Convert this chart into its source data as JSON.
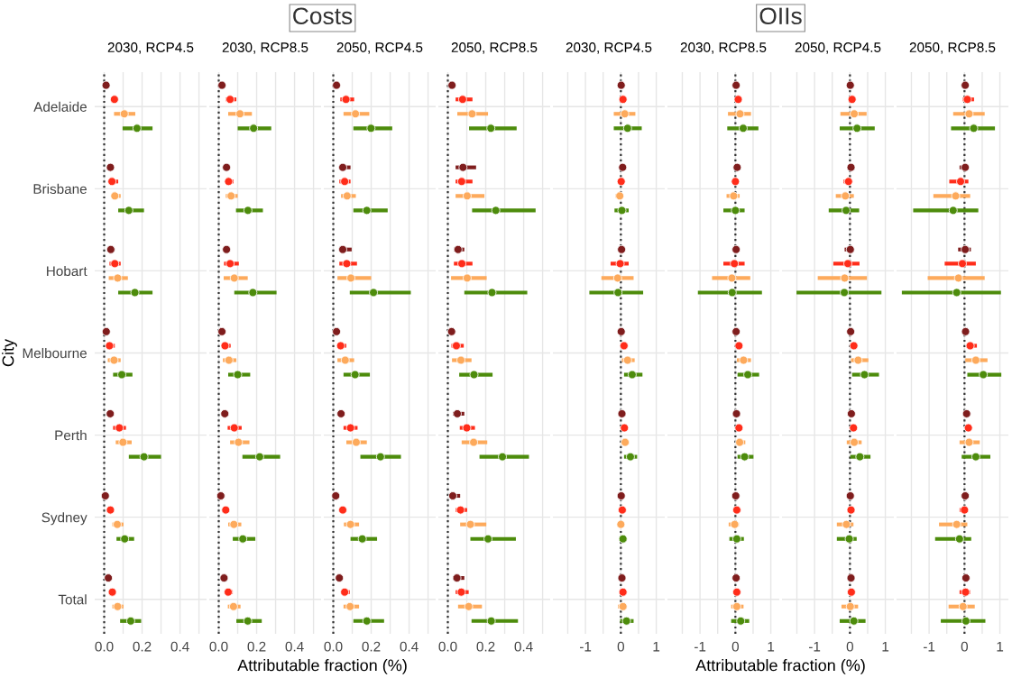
{
  "chart_data": [
    {
      "type": "scatter",
      "orientation": "horizontal",
      "title": "2030, RCP4.5",
      "xlabel": "Attributable fraction (%)",
      "ylabel": "City",
      "annotations": [
        "Costs"
      ],
      "grid": true,
      "marker": "circle",
      "categories": [
        "Adelaide",
        "Brisbane",
        "Hobart",
        "Melbourne",
        "Perth",
        "Sydney",
        "Total"
      ],
      "xlim": [
        -0.05,
        0.54
      ],
      "xticks": [
        {
          "value": 0,
          "label": "0.0"
        },
        {
          "value": 0.1,
          "label": null
        },
        {
          "value": 0.2,
          "label": "0.2"
        },
        {
          "value": 0.3,
          "label": null
        },
        {
          "value": 0.4,
          "label": "0.4"
        },
        {
          "value": 0.5,
          "label": null
        }
      ],
      "ref_lines": [
        {
          "axis": "x",
          "value": 0,
          "line_style": "dotted",
          "color": "#333333"
        }
      ],
      "series": [
        {
          "color": "#7f1d1d",
          "values": [
            0.01,
            0.033,
            0.035,
            0.011,
            0.032,
            0.006,
            0.022
          ],
          "errors": [
            null,
            null,
            null,
            null,
            null,
            null,
            null
          ]
        },
        {
          "color": "#ff2d1a",
          "values": [
            0.054,
            0.041,
            0.056,
            0.028,
            0.08,
            0.033,
            0.043
          ],
          "errors": [
            [
              0.041,
              0.071
            ],
            [
              0.028,
              0.074
            ],
            [
              0.028,
              0.087
            ],
            [
              0.015,
              0.056
            ],
            [
              0.047,
              0.115
            ],
            null,
            null
          ]
        },
        {
          "color": "#fdaa5c",
          "values": [
            0.106,
            0.056,
            0.071,
            0.052,
            0.099,
            0.069,
            0.071
          ],
          "errors": [
            [
              0.052,
              0.164
            ],
            [
              0.041,
              0.087
            ],
            [
              0.024,
              0.125
            ],
            [
              0.019,
              0.087
            ],
            [
              0.061,
              0.145
            ],
            [
              0.043,
              0.102
            ],
            [
              0.043,
              0.102
            ]
          ]
        },
        {
          "color": "#4d8c0c",
          "values": [
            0.173,
            0.13,
            0.162,
            0.093,
            0.21,
            0.108,
            0.14
          ],
          "errors": [
            [
              0.097,
              0.255
            ],
            [
              0.074,
              0.21
            ],
            [
              0.074,
              0.255
            ],
            [
              0.047,
              0.149
            ],
            [
              0.13,
              0.3
            ],
            [
              0.065,
              0.158
            ],
            [
              0.084,
              0.195
            ]
          ]
        }
      ]
    },
    {
      "type": "scatter",
      "orientation": "horizontal",
      "title": "2030, RCP8.5",
      "tick_labels": "x",
      "grid": true,
      "marker": "circle",
      "xlim": [
        -0.05,
        0.54
      ],
      "xticks": [
        {
          "value": 0,
          "label": "0.0"
        },
        {
          "value": 0.1,
          "label": null
        },
        {
          "value": 0.2,
          "label": "0.2"
        },
        {
          "value": 0.3,
          "label": null
        },
        {
          "value": 0.4,
          "label": "0.4"
        },
        {
          "value": 0.5,
          "label": null
        }
      ],
      "ref_lines": [
        {
          "axis": "x",
          "value": 0,
          "line_style": "dotted",
          "color": "#333333"
        }
      ],
      "series": [
        {
          "color": "#7f1d1d",
          "values": [
            0.017,
            0.041,
            0.041,
            0.017,
            0.032,
            0.011,
            0.028
          ],
          "errors": [
            null,
            null,
            null,
            null,
            null,
            null,
            null
          ]
        },
        {
          "color": "#ff2d1a",
          "values": [
            0.06,
            0.052,
            0.06,
            0.033,
            0.082,
            0.037,
            0.05
          ],
          "errors": [
            [
              0.037,
              0.093
            ],
            [
              0.037,
              0.078
            ],
            [
              0.028,
              0.106
            ],
            [
              0.022,
              0.063
            ],
            [
              0.047,
              0.121
            ],
            null,
            [
              0.035,
              0.074
            ]
          ]
        },
        {
          "color": "#fdaa5c",
          "values": [
            0.112,
            0.065,
            0.082,
            0.054,
            0.104,
            0.08,
            0.078
          ],
          "errors": [
            [
              0.05,
              0.175
            ],
            [
              0.037,
              0.1
            ],
            [
              0.026,
              0.153
            ],
            [
              0.022,
              0.093
            ],
            [
              0.06,
              0.162
            ],
            [
              0.05,
              0.119
            ],
            [
              0.048,
              0.115
            ]
          ]
        },
        {
          "color": "#4d8c0c",
          "values": [
            0.184,
            0.154,
            0.18,
            0.1,
            0.216,
            0.127,
            0.153
          ],
          "errors": [
            [
              0.1,
              0.277
            ],
            [
              0.091,
              0.233
            ],
            [
              0.082,
              0.305
            ],
            [
              0.05,
              0.166
            ],
            [
              0.125,
              0.324
            ],
            [
              0.074,
              0.193
            ],
            [
              0.093,
              0.227
            ]
          ]
        }
      ]
    },
    {
      "type": "scatter",
      "orientation": "horizontal",
      "title": "2050, RCP4.5",
      "tick_labels": "x",
      "grid": true,
      "marker": "circle",
      "xlim": [
        -0.05,
        0.54
      ],
      "xticks": [
        {
          "value": 0,
          "label": "0.0"
        },
        {
          "value": 0.1,
          "label": null
        },
        {
          "value": 0.2,
          "label": "0.2"
        },
        {
          "value": 0.3,
          "label": null
        },
        {
          "value": 0.4,
          "label": "0.4"
        },
        {
          "value": 0.5,
          "label": null
        }
      ],
      "ref_lines": [
        {
          "axis": "x",
          "value": 0,
          "line_style": "dotted",
          "color": "#333333"
        }
      ],
      "series": [
        {
          "color": "#7f1d1d",
          "values": [
            0.017,
            0.05,
            0.05,
            0.017,
            0.041,
            0.013,
            0.032
          ],
          "errors": [
            null,
            [
              0.035,
              0.091
            ],
            [
              0.032,
              0.097
            ],
            null,
            null,
            null,
            null
          ]
        },
        {
          "color": "#ff2d1a",
          "values": [
            0.067,
            0.06,
            0.071,
            0.039,
            0.091,
            0.05,
            0.06
          ],
          "errors": [
            [
              0.037,
              0.11
            ],
            [
              0.032,
              0.091
            ],
            [
              0.032,
              0.125
            ],
            [
              0.026,
              0.069
            ],
            [
              0.054,
              0.128
            ],
            [
              0.037,
              0.069
            ],
            [
              0.041,
              0.087
            ]
          ]
        },
        {
          "color": "#fdaa5c",
          "values": [
            0.117,
            0.073,
            0.093,
            0.063,
            0.121,
            0.091,
            0.089
          ],
          "errors": [
            [
              0.054,
              0.19
            ],
            [
              0.041,
              0.119
            ],
            [
              0.022,
              0.2
            ],
            [
              0.022,
              0.11
            ],
            [
              0.069,
              0.177
            ],
            [
              0.056,
              0.136
            ],
            [
              0.054,
              0.136
            ]
          ]
        },
        {
          "color": "#4d8c0c",
          "values": [
            0.199,
            0.177,
            0.212,
            0.115,
            0.249,
            0.153,
            0.177
          ],
          "errors": [
            [
              0.106,
              0.311
            ],
            [
              0.106,
              0.287
            ],
            [
              0.087,
              0.409
            ],
            [
              0.054,
              0.193
            ],
            [
              0.143,
              0.357
            ],
            [
              0.091,
              0.231
            ],
            [
              0.106,
              0.268
            ]
          ]
        }
      ]
    },
    {
      "type": "scatter",
      "orientation": "horizontal",
      "title": "2050, RCP8.5",
      "tick_labels": "x",
      "grid": true,
      "marker": "circle",
      "xlim": [
        -0.05,
        0.54
      ],
      "xticks": [
        {
          "value": 0,
          "label": "0.0"
        },
        {
          "value": 0.1,
          "label": null
        },
        {
          "value": 0.2,
          "label": "0.2"
        },
        {
          "value": 0.3,
          "label": null
        },
        {
          "value": 0.4,
          "label": "0.4"
        },
        {
          "value": 0.5,
          "label": null
        }
      ],
      "ref_lines": [
        {
          "axis": "x",
          "value": 0,
          "line_style": "dotted",
          "color": "#333333"
        }
      ],
      "series": [
        {
          "color": "#7f1d1d",
          "values": [
            0.022,
            0.08,
            0.054,
            0.02,
            0.05,
            0.026,
            0.048
          ],
          "errors": [
            null,
            [
              0.041,
              0.149
            ],
            [
              0.032,
              0.087
            ],
            null,
            [
              0.026,
              0.087
            ],
            [
              0.013,
              0.065
            ],
            [
              0.026,
              0.087
            ]
          ]
        },
        {
          "color": "#ff2d1a",
          "values": [
            0.078,
            0.073,
            0.074,
            0.045,
            0.1,
            0.067,
            0.071
          ],
          "errors": [
            [
              0.041,
              0.13
            ],
            [
              0.041,
              0.13
            ],
            [
              0.032,
              0.13
            ],
            [
              0.019,
              0.084
            ],
            [
              0.063,
              0.143
            ],
            [
              0.041,
              0.102
            ],
            [
              0.041,
              0.11
            ]
          ]
        },
        {
          "color": "#fdaa5c",
          "values": [
            0.128,
            0.102,
            0.102,
            0.069,
            0.136,
            0.119,
            0.11
          ],
          "errors": [
            [
              0.05,
              0.212
            ],
            [
              0.041,
              0.193
            ],
            [
              0.017,
              0.205
            ],
            [
              0.022,
              0.125
            ],
            [
              0.073,
              0.208
            ],
            [
              0.065,
              0.203
            ],
            [
              0.054,
              0.18
            ]
          ]
        },
        {
          "color": "#4d8c0c",
          "values": [
            0.227,
            0.253,
            0.233,
            0.138,
            0.288,
            0.212,
            0.229
          ],
          "errors": [
            [
              0.112,
              0.363
            ],
            [
              0.128,
              0.463
            ],
            [
              0.087,
              0.419
            ],
            [
              0.06,
              0.236
            ],
            [
              0.167,
              0.428
            ],
            [
              0.119,
              0.359
            ],
            [
              0.125,
              0.37
            ]
          ]
        }
      ]
    },
    {
      "type": "scatter",
      "orientation": "horizontal",
      "title": "2030, RCP4.5",
      "xlabel": "Attributable fraction (%)",
      "annotations": [
        "OIIs"
      ],
      "tick_labels": "x",
      "grid": true,
      "marker": "circle",
      "xlim": [
        -1.92,
        1.24
      ],
      "xticks": [
        {
          "value": -1.5,
          "label": null
        },
        {
          "value": -1,
          "label": "-1"
        },
        {
          "value": -0.5,
          "label": null
        },
        0,
        {
          "value": 0.5,
          "label": null
        },
        1
      ],
      "ref_lines": [
        {
          "axis": "x",
          "value": 0,
          "line_style": "dotted",
          "color": "#333333"
        }
      ],
      "series": [
        {
          "color": "#7f1d1d",
          "values": [
            0.01,
            0.05,
            0.02,
            0.01,
            0.03,
            0.01,
            0.03
          ],
          "errors": [
            null,
            null,
            null,
            null,
            null,
            null,
            null
          ]
        },
        {
          "color": "#ff2d1a",
          "values": [
            0.06,
            0.01,
            -0.02,
            0.09,
            0.1,
            0.04,
            0.06
          ],
          "errors": [
            null,
            null,
            [
              -0.29,
              0.22
            ],
            null,
            null,
            null,
            null
          ]
        },
        {
          "color": "#fdaa5c",
          "values": [
            0.11,
            -0.03,
            -0.09,
            0.19,
            0.12,
            0.0,
            0.06
          ],
          "errors": [
            [
              -0.2,
              0.41
            ],
            [
              -0.15,
              0.05
            ],
            [
              -0.55,
              0.36
            ],
            [
              0.03,
              0.39
            ],
            [
              0.03,
              0.23
            ],
            null,
            [
              -0.08,
              0.17
            ]
          ]
        },
        {
          "color": "#4d8c0c",
          "values": [
            0.19,
            0.03,
            -0.08,
            0.32,
            0.27,
            0.06,
            0.16
          ],
          "errors": [
            [
              -0.2,
              0.59
            ],
            [
              -0.18,
              0.22
            ],
            [
              -0.89,
              0.63
            ],
            [
              0.09,
              0.61
            ],
            [
              0.09,
              0.46
            ],
            [
              -0.04,
              0.17
            ],
            [
              -0.02,
              0.36
            ]
          ]
        }
      ]
    },
    {
      "type": "scatter",
      "orientation": "horizontal",
      "title": "2030, RCP8.5",
      "tick_labels": "x",
      "grid": true,
      "marker": "circle",
      "xlim": [
        -1.92,
        1.24
      ],
      "xticks": [
        {
          "value": -1.5,
          "label": null
        },
        {
          "value": -1,
          "label": "-1"
        },
        {
          "value": -0.5,
          "label": null
        },
        0,
        {
          "value": 0.5,
          "label": null
        },
        1
      ],
      "ref_lines": [
        {
          "axis": "x",
          "value": 0,
          "line_style": "dotted",
          "color": "#333333"
        }
      ],
      "series": [
        {
          "color": "#7f1d1d",
          "values": [
            0.02,
            0.05,
            0.02,
            0.02,
            0.03,
            0.01,
            0.02
          ],
          "errors": [
            null,
            null,
            null,
            null,
            null,
            null,
            null
          ]
        },
        {
          "color": "#ff2d1a",
          "values": [
            0.08,
            0.0,
            -0.03,
            0.1,
            0.1,
            0.04,
            0.04
          ],
          "errors": [
            null,
            null,
            [
              -0.34,
              0.26
            ],
            null,
            null,
            null,
            null
          ]
        },
        {
          "color": "#fdaa5c",
          "values": [
            0.13,
            -0.05,
            -0.1,
            0.23,
            0.12,
            -0.02,
            0.04
          ],
          "errors": [
            [
              -0.21,
              0.44
            ],
            [
              -0.25,
              0.12
            ],
            [
              -0.66,
              0.42
            ],
            [
              0.04,
              0.44
            ],
            [
              0.02,
              0.28
            ],
            [
              -0.19,
              0.1
            ],
            [
              -0.12,
              0.23
            ]
          ]
        },
        {
          "color": "#4d8c0c",
          "values": [
            0.22,
            0.0,
            -0.09,
            0.35,
            0.26,
            0.04,
            0.15
          ],
          "errors": [
            [
              -0.23,
              0.65
            ],
            [
              -0.34,
              0.26
            ],
            [
              -1.06,
              0.75
            ],
            [
              0.06,
              0.67
            ],
            [
              0.06,
              0.51
            ],
            [
              -0.17,
              0.24
            ],
            [
              -0.12,
              0.39
            ]
          ]
        }
      ]
    },
    {
      "type": "scatter",
      "orientation": "horizontal",
      "title": "2050, RCP4.5",
      "tick_labels": "x",
      "grid": true,
      "marker": "circle",
      "xlim": [
        -1.92,
        1.24
      ],
      "xticks": [
        {
          "value": -1.5,
          "label": null
        },
        {
          "value": -1,
          "label": "-1"
        },
        {
          "value": -0.5,
          "label": null
        },
        0,
        {
          "value": 0.5,
          "label": null
        },
        1
      ],
      "ref_lines": [
        {
          "axis": "x",
          "value": 0,
          "line_style": "dotted",
          "color": "#333333"
        }
      ],
      "series": [
        {
          "color": "#7f1d1d",
          "values": [
            0.01,
            0.03,
            0.01,
            0.02,
            0.04,
            0.01,
            0.03
          ],
          "errors": [
            null,
            null,
            [
              -0.15,
              0.11
            ],
            null,
            null,
            null,
            null
          ]
        },
        {
          "color": "#ff2d1a",
          "values": [
            0.06,
            -0.04,
            -0.06,
            0.11,
            0.1,
            0.03,
            0.04
          ],
          "errors": [
            null,
            [
              -0.18,
              0.03
            ],
            [
              -0.47,
              0.27
            ],
            null,
            null,
            null,
            null
          ]
        },
        {
          "color": "#fdaa5c",
          "values": [
            0.12,
            -0.13,
            -0.15,
            0.23,
            0.12,
            -0.1,
            0.01
          ],
          "errors": [
            [
              -0.27,
              0.47
            ],
            [
              -0.4,
              0.11
            ],
            [
              -0.91,
              0.48
            ],
            [
              0.03,
              0.52
            ],
            [
              -0.09,
              0.33
            ],
            [
              -0.37,
              0.1
            ],
            [
              -0.24,
              0.23
            ]
          ]
        },
        {
          "color": "#4d8c0c",
          "values": [
            0.2,
            -0.11,
            -0.16,
            0.41,
            0.28,
            -0.02,
            0.11
          ],
          "errors": [
            [
              -0.29,
              0.7
            ],
            [
              -0.6,
              0.26
            ],
            [
              -1.51,
              0.89
            ],
            [
              0.06,
              0.82
            ],
            [
              0.01,
              0.58
            ],
            [
              -0.37,
              0.19
            ],
            [
              -0.29,
              0.44
            ]
          ]
        }
      ]
    },
    {
      "type": "scatter",
      "orientation": "horizontal",
      "title": "2050, RCP8.5",
      "tick_labels": "x",
      "grid": true,
      "marker": "circle",
      "xlim": [
        -1.92,
        1.24
      ],
      "xticks": [
        {
          "value": -1.5,
          "label": null
        },
        {
          "value": -1,
          "label": "-1"
        },
        {
          "value": -0.5,
          "label": null
        },
        0,
        {
          "value": 0.5,
          "label": null
        },
        1
      ],
      "ref_lines": [
        {
          "axis": "x",
          "value": 0,
          "line_style": "dotted",
          "color": "#333333"
        }
      ],
      "series": [
        {
          "color": "#7f1d1d",
          "values": [
            0.02,
            0.02,
            0.02,
            0.03,
            0.06,
            0.02,
            0.04
          ],
          "errors": [
            null,
            [
              -0.14,
              0.11
            ],
            [
              -0.18,
              0.18
            ],
            null,
            null,
            null,
            null
          ]
        },
        {
          "color": "#ff2d1a",
          "values": [
            0.08,
            -0.11,
            -0.06,
            0.16,
            0.11,
            0.0,
            0.03
          ],
          "errors": [
            [
              -0.05,
              0.27
            ],
            [
              -0.43,
              0.11
            ],
            [
              -0.56,
              0.32
            ],
            [
              0.05,
              0.35
            ],
            null,
            [
              -0.14,
              0.09
            ],
            [
              -0.14,
              0.16
            ]
          ]
        },
        {
          "color": "#fdaa5c",
          "values": [
            0.13,
            -0.25,
            -0.17,
            0.32,
            0.13,
            -0.22,
            -0.04
          ],
          "errors": [
            [
              -0.32,
              0.57
            ],
            [
              -0.88,
              0.16
            ],
            [
              -1.04,
              0.57
            ],
            [
              0.02,
              0.65
            ],
            [
              -0.14,
              0.43
            ],
            [
              -0.72,
              0.08
            ],
            [
              -0.45,
              0.29
            ]
          ]
        },
        {
          "color": "#4d8c0c",
          "values": [
            0.26,
            -0.32,
            -0.22,
            0.53,
            0.32,
            -0.14,
            0.04
          ],
          "errors": [
            [
              -0.38,
              0.86
            ],
            [
              -1.45,
              0.39
            ],
            [
              -1.77,
              1.03
            ],
            [
              0.08,
              1.04
            ],
            [
              -0.08,
              0.73
            ],
            [
              -0.83,
              0.19
            ],
            [
              -0.67,
              0.59
            ]
          ]
        }
      ]
    }
  ]
}
